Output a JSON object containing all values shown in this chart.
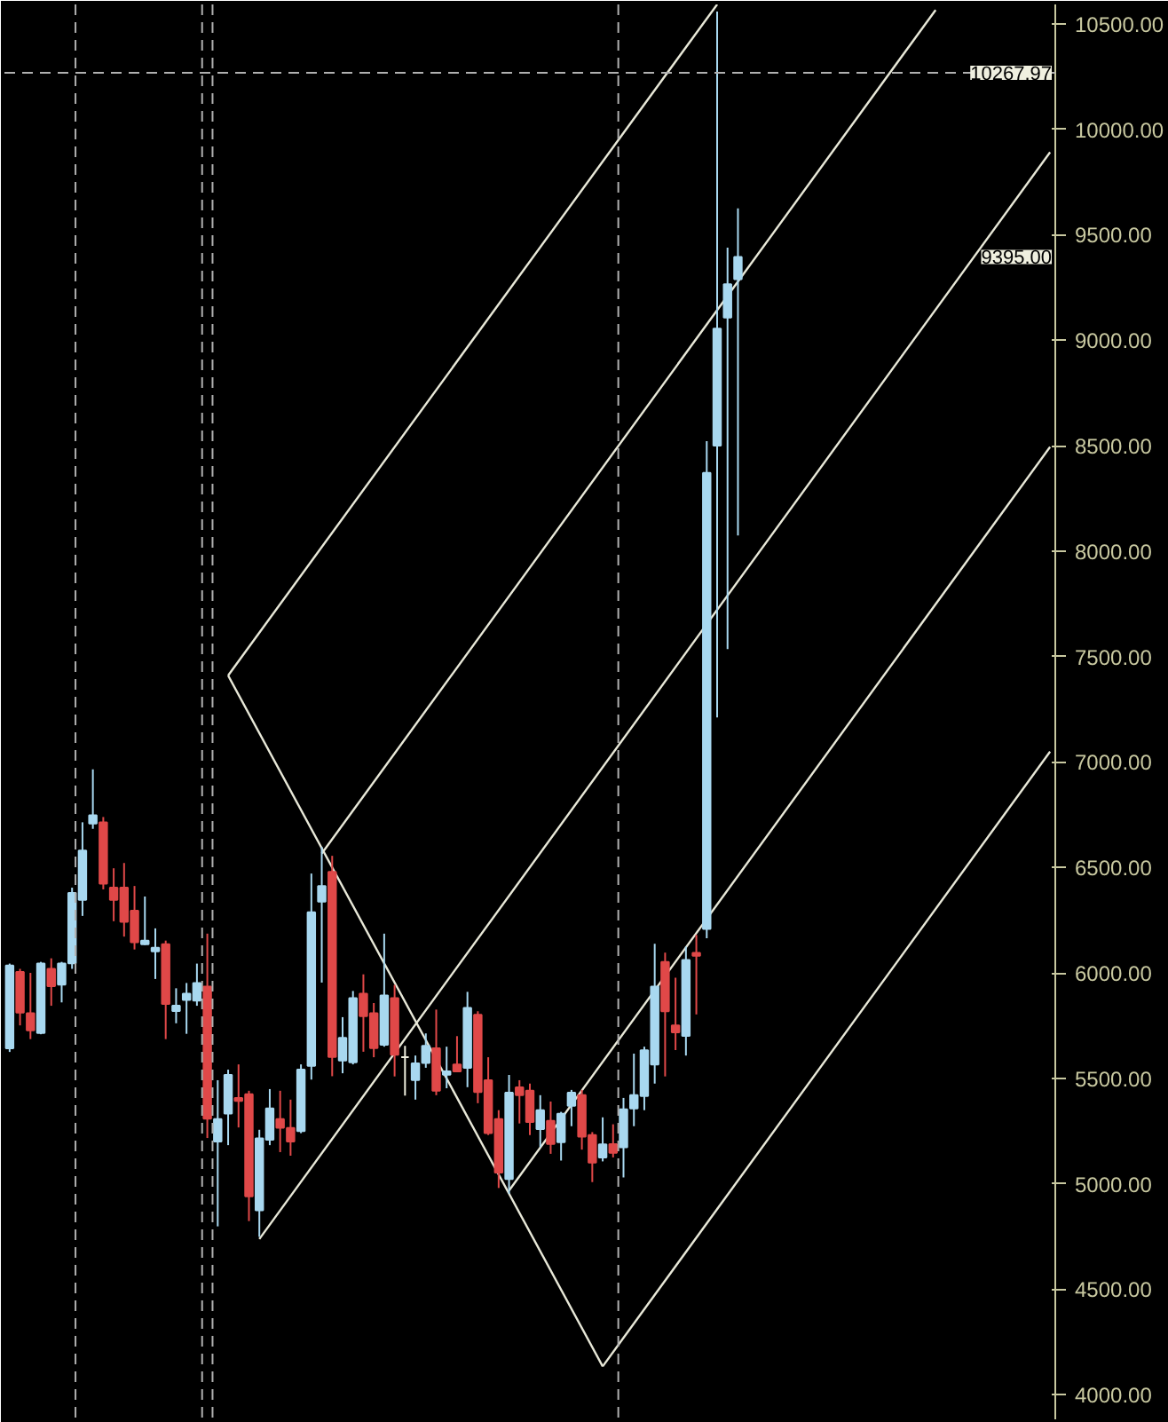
{
  "chart_data": {
    "type": "candlestick",
    "categories": [
      null,
      null,
      null,
      null,
      null,
      null,
      null,
      null,
      null,
      null,
      null,
      null,
      null,
      null,
      null,
      null,
      null,
      null,
      null,
      null,
      null,
      null,
      null,
      null,
      null,
      null,
      null,
      null,
      null,
      null,
      null,
      null,
      null,
      null,
      null,
      null,
      null,
      null,
      null,
      null,
      null,
      null,
      null,
      null,
      null,
      null,
      null,
      null,
      null,
      null,
      null,
      null,
      null,
      null,
      null,
      null,
      null,
      null,
      null,
      null,
      null,
      null,
      null,
      null,
      null,
      null,
      null,
      null,
      null,
      null,
      null,
      null,
      null,
      null,
      null,
      null,
      null,
      null,
      null,
      null,
      null,
      null,
      null,
      null,
      null,
      null,
      null,
      null,
      null,
      null,
      null,
      null,
      null,
      null,
      null,
      null,
      null,
      null,
      null,
      null,
      null
    ],
    "ohlc": [
      [
        5642,
        6044,
        5625,
        6035
      ],
      [
        6004,
        6019,
        5751,
        5812
      ],
      [
        5809,
        6000,
        5686,
        5728
      ],
      [
        5715,
        6052,
        5709,
        6044
      ],
      [
        6019,
        6069,
        5844,
        5937
      ],
      [
        5944,
        6052,
        5860,
        6044
      ],
      [
        6045,
        6404,
        6019,
        6379
      ],
      [
        6346,
        6714,
        6270,
        6580
      ],
      [
        6708,
        6965,
        6683,
        6747
      ],
      [
        6714,
        6739,
        6396,
        6423
      ],
      [
        6404,
        6496,
        6245,
        6346
      ],
      [
        6404,
        6521,
        6172,
        6242
      ],
      [
        6295,
        6412,
        6111,
        6145
      ],
      [
        6136,
        6362,
        6132,
        6153
      ],
      [
        6102,
        6211,
        5971,
        6119
      ],
      [
        6136,
        6153,
        5686,
        5853
      ],
      [
        5819,
        5927,
        5761,
        5844
      ],
      [
        5872,
        5952,
        5711,
        5901
      ],
      [
        5869,
        6044,
        5844,
        5952
      ],
      [
        5935,
        6186,
        5217,
        5309
      ],
      [
        5200,
        5491,
        4798,
        5307
      ],
      [
        5333,
        5541,
        5183,
        5516
      ],
      [
        5407,
        5566,
        5267,
        5393
      ],
      [
        5424,
        5441,
        4823,
        4941
      ],
      [
        4874,
        5256,
        4748,
        5215
      ],
      [
        5209,
        5449,
        5183,
        5357
      ],
      [
        5307,
        5441,
        5150,
        5266
      ],
      [
        5265,
        5399,
        5133,
        5200
      ],
      [
        5250,
        5566,
        5240,
        5541
      ],
      [
        5559,
        6471,
        5494,
        6287
      ],
      [
        6338,
        6597,
        5954,
        6412
      ],
      [
        6479,
        6555,
        5510,
        5601
      ],
      [
        5584,
        5790,
        5524,
        5692
      ],
      [
        5576,
        5914,
        5566,
        5880
      ],
      [
        5901,
        5993,
        5626,
        5795
      ],
      [
        5809,
        5857,
        5600,
        5643
      ],
      [
        5659,
        6186,
        5650,
        5893
      ],
      [
        5880,
        5943,
        5509,
        5612
      ],
      [
        5600,
        5654,
        5418,
        5600
      ],
      [
        5492,
        5608,
        5399,
        5571
      ],
      [
        5573,
        5713,
        5550,
        5654
      ],
      [
        5642,
        5826,
        5420,
        5441
      ],
      [
        5517,
        5650,
        5453,
        5533
      ],
      [
        5566,
        5700,
        5530,
        5533
      ],
      [
        5550,
        5910,
        5458,
        5834
      ],
      [
        5801,
        5818,
        5382,
        5435
      ],
      [
        5491,
        5600,
        5231,
        5240
      ],
      [
        5307,
        5349,
        4980,
        5053
      ],
      [
        5023,
        5516,
        4952,
        5432
      ],
      [
        5457,
        5491,
        5286,
        5420
      ],
      [
        5441,
        5475,
        5231,
        5293
      ],
      [
        5259,
        5420,
        5174,
        5349
      ],
      [
        5298,
        5390,
        5142,
        5189
      ],
      [
        5197,
        5341,
        5110,
        5332
      ],
      [
        5370,
        5445,
        5273,
        5432
      ],
      [
        5420,
        5445,
        5162,
        5224
      ],
      [
        5231,
        5245,
        5008,
        5100
      ],
      [
        5125,
        5315,
        5106,
        5187
      ],
      [
        5188,
        5282,
        5125,
        5147
      ],
      [
        5173,
        5407,
        5030,
        5353
      ],
      [
        5357,
        5617,
        5273,
        5420
      ],
      [
        5416,
        5650,
        5349,
        5633
      ],
      [
        5566,
        6138,
        5475,
        5935
      ],
      [
        6052,
        6096,
        5509,
        5818
      ],
      [
        5751,
        5977,
        5634,
        5718
      ],
      [
        5701,
        6125,
        5608,
        6061
      ],
      [
        6095,
        6180,
        5803,
        6081
      ],
      [
        6208,
        8521,
        6164,
        8371
      ],
      [
        8500,
        10558,
        7211,
        9055
      ],
      [
        9107,
        9439,
        7535,
        9265
      ],
      [
        9289,
        9625,
        8074,
        9395
      ],
      null,
      null,
      null,
      null,
      null,
      null,
      null,
      null,
      null,
      null,
      null,
      null,
      null,
      null,
      null,
      null,
      null,
      null,
      null,
      null,
      null,
      null,
      null,
      null,
      null,
      null,
      null,
      null,
      null,
      null
    ],
    "colors": [
      "#a8d8f0",
      "#e04848",
      "#e04848",
      "#a8d8f0",
      "#e04848",
      "#a8d8f0",
      "#a8d8f0",
      "#a8d8f0",
      "#a8d8f0",
      "#e04848",
      "#e04848",
      "#e04848",
      "#e04848",
      "#a8d8f0",
      "#a8d8f0",
      "#e04848",
      "#a8d8f0",
      "#a8d8f0",
      "#a8d8f0",
      "#e04848",
      "#a8d8f0",
      "#a8d8f0",
      "#e04848",
      "#e04848",
      "#a8d8f0",
      "#a8d8f0",
      "#e04848",
      "#e04848",
      "#a8d8f0",
      "#a8d8f0",
      "#a8d8f0",
      "#e04848",
      "#a8d8f0",
      "#a8d8f0",
      "#e04848",
      "#e04848",
      "#a8d8f0",
      "#e04848",
      "#f0f0e0",
      "#a8d8f0",
      "#a8d8f0",
      "#e04848",
      "#a8d8f0",
      "#e04848",
      "#a8d8f0",
      "#e04848",
      "#e04848",
      "#e04848",
      "#a8d8f0",
      "#e04848",
      "#e04848",
      "#a8d8f0",
      "#e04848",
      "#a8d8f0",
      "#a8d8f0",
      "#e04848",
      "#e04848",
      "#a8d8f0",
      "#e04848",
      "#a8d8f0",
      "#a8d8f0",
      "#a8d8f0",
      "#a8d8f0",
      "#e04848",
      "#e04848",
      "#a8d8f0",
      "#e04848",
      "#a8d8f0",
      "#a8d8f0",
      "#a8d8f0",
      "#a8d8f0",
      null,
      null,
      null,
      null,
      null,
      null,
      null,
      null,
      null,
      null,
      null,
      null,
      null,
      null,
      null,
      null,
      null,
      null,
      null,
      null,
      null,
      null,
      null,
      null,
      null,
      null,
      null,
      null,
      null,
      null
    ],
    "series": [
      {
        "type": "line",
        "color": "#e8e8d8",
        "values": [
          null,
          null,
          null,
          null,
          null,
          null,
          null,
          null,
          null,
          null,
          null,
          null,
          null,
          null,
          null,
          null,
          null,
          null,
          null,
          null,
          null,
          7410,
          null,
          null,
          null,
          null,
          null,
          null,
          null,
          null,
          null,
          null,
          null,
          null,
          null,
          null,
          null,
          null,
          null,
          null,
          null,
          null,
          null,
          null,
          null,
          null,
          null,
          null,
          null,
          null,
          null,
          null,
          null,
          null,
          null,
          null,
          null,
          null,
          null,
          null,
          null,
          null,
          null,
          null,
          null,
          null,
          null,
          null,
          10592,
          null,
          null,
          null,
          null,
          null,
          null,
          null,
          null,
          null,
          null,
          null,
          null,
          null,
          null,
          null,
          null,
          null,
          null,
          null,
          null,
          null,
          null,
          null,
          null,
          null,
          null,
          null,
          null,
          null,
          null,
          null,
          null
        ]
      },
      {
        "type": "line",
        "color": "#e8e8d8",
        "values": [
          null,
          null,
          null,
          null,
          null,
          null,
          null,
          null,
          null,
          null,
          null,
          null,
          null,
          null,
          null,
          null,
          null,
          null,
          null,
          null,
          null,
          7410,
          null,
          null,
          null,
          null,
          null,
          null,
          null,
          null,
          null,
          null,
          null,
          null,
          null,
          null,
          null,
          null,
          null,
          null,
          null,
          null,
          null,
          null,
          null,
          null,
          null,
          null,
          null,
          null,
          null,
          null,
          null,
          null,
          null,
          null,
          null,
          4134,
          null,
          null,
          null,
          null,
          null,
          null,
          null,
          null,
          null,
          null,
          null,
          null,
          null,
          null,
          null,
          null,
          null,
          null,
          null,
          null,
          null,
          null,
          null,
          null,
          null,
          null,
          null,
          null,
          null,
          null,
          null,
          null,
          null,
          null,
          null,
          null,
          null,
          null,
          null,
          null,
          null,
          null,
          null
        ]
      },
      {
        "type": "line",
        "color": "#e8e8d8",
        "values": [
          null,
          null,
          null,
          null,
          null,
          null,
          null,
          null,
          null,
          null,
          null,
          null,
          null,
          null,
          null,
          null,
          null,
          null,
          null,
          null,
          null,
          null,
          null,
          null,
          null,
          null,
          null,
          null,
          null,
          null,
          null,
          null,
          null,
          null,
          null,
          null,
          null,
          null,
          null,
          null,
          null,
          null,
          null,
          null,
          null,
          null,
          null,
          null,
          null,
          null,
          null,
          null,
          null,
          null,
          null,
          null,
          null,
          4134,
          null,
          null,
          null,
          null,
          null,
          null,
          null,
          null,
          null,
          null,
          null,
          null,
          null,
          null,
          null,
          null,
          null,
          null,
          null,
          null,
          null,
          null,
          null,
          null,
          null,
          null,
          null,
          null,
          null,
          null,
          null,
          null,
          null,
          null,
          null,
          null,
          null,
          null,
          null,
          null,
          null,
          null,
          7049
        ]
      },
      {
        "type": "line",
        "color": "#e8e8d8",
        "values": [
          null,
          null,
          null,
          null,
          null,
          null,
          null,
          null,
          null,
          null,
          null,
          null,
          null,
          null,
          null,
          null,
          null,
          null,
          null,
          null,
          null,
          null,
          null,
          null,
          null,
          null,
          null,
          null,
          null,
          null,
          null,
          null,
          null,
          null,
          null,
          null,
          null,
          null,
          null,
          null,
          null,
          null,
          null,
          null,
          null,
          null,
          null,
          null,
          4968,
          null,
          null,
          null,
          null,
          null,
          null,
          null,
          null,
          null,
          null,
          null,
          null,
          null,
          null,
          null,
          null,
          null,
          null,
          null,
          null,
          null,
          null,
          null,
          null,
          null,
          null,
          null,
          null,
          null,
          null,
          null,
          null,
          null,
          null,
          null,
          null,
          null,
          null,
          null,
          null,
          null,
          null,
          null,
          null,
          null,
          null,
          null,
          null,
          null,
          null,
          null,
          8494
        ]
      },
      {
        "type": "line",
        "color": "#e8e8d8",
        "values": [
          null,
          null,
          null,
          null,
          null,
          null,
          null,
          null,
          null,
          null,
          null,
          null,
          null,
          null,
          null,
          null,
          null,
          null,
          null,
          null,
          null,
          null,
          null,
          null,
          null,
          null,
          null,
          null,
          null,
          null,
          6566,
          null,
          null,
          null,
          null,
          null,
          null,
          null,
          null,
          null,
          null,
          null,
          null,
          null,
          null,
          null,
          null,
          null,
          null,
          null,
          null,
          null,
          null,
          null,
          null,
          null,
          null,
          null,
          null,
          null,
          null,
          null,
          null,
          null,
          null,
          null,
          null,
          null,
          null,
          null,
          null,
          null,
          null,
          null,
          null,
          null,
          null,
          null,
          null,
          null,
          null,
          null,
          null,
          null,
          null,
          null,
          null,
          null,
          null,
          10566,
          null,
          null,
          null,
          null,
          null,
          null,
          null,
          null,
          null,
          null,
          null
        ]
      },
      {
        "type": "line",
        "color": "#e8e8d8",
        "values": [
          null,
          null,
          null,
          null,
          null,
          null,
          null,
          null,
          null,
          null,
          null,
          null,
          null,
          null,
          null,
          null,
          null,
          null,
          null,
          null,
          null,
          null,
          null,
          null,
          4738,
          null,
          null,
          null,
          null,
          null,
          null,
          null,
          null,
          null,
          null,
          null,
          null,
          null,
          null,
          null,
          null,
          null,
          null,
          null,
          null,
          null,
          null,
          null,
          null,
          null,
          null,
          null,
          null,
          null,
          null,
          null,
          null,
          null,
          null,
          null,
          null,
          null,
          null,
          null,
          null,
          null,
          null,
          null,
          null,
          null,
          null,
          null,
          null,
          null,
          null,
          null,
          null,
          null,
          null,
          null,
          null,
          null,
          null,
          null,
          null,
          null,
          null,
          null,
          null,
          null,
          null,
          null,
          null,
          null,
          null,
          null,
          null,
          null,
          null,
          null,
          9891
        ]
      }
    ],
    "ref_lines": [
      {
        "axis": "y",
        "value": 10267.97,
        "label": "10267.97",
        "color": "#b0b0b0",
        "line_style": "dashed"
      }
    ],
    "annotations": [
      "9395.00"
    ],
    "ylim": [
      3883,
      10592
    ],
    "yticks": [
      {
        "value": 4000,
        "label": "4000.00"
      },
      {
        "value": 4500,
        "label": "4500.00"
      },
      {
        "value": 5000,
        "label": "5000.00"
      },
      {
        "value": 5500,
        "label": "5500.00"
      },
      {
        "value": 6000,
        "label": "6000.00"
      },
      {
        "value": 6500,
        "label": "6500.00"
      },
      {
        "value": 7000,
        "label": "7000.00"
      },
      {
        "value": 7500,
        "label": "7500.00"
      },
      {
        "value": 8000,
        "label": "8000.00"
      },
      {
        "value": 8500,
        "label": "8500.00"
      },
      {
        "value": 9000,
        "label": "9000.00"
      },
      {
        "value": 9500,
        "label": "9500.00"
      },
      {
        "value": 10000,
        "label": "10000.00"
      },
      {
        "value": 10500,
        "label": "10500.00"
      }
    ],
    "tick_labels": "y",
    "grid": false,
    "marker": "none",
    "line_style": "solid"
  }
}
